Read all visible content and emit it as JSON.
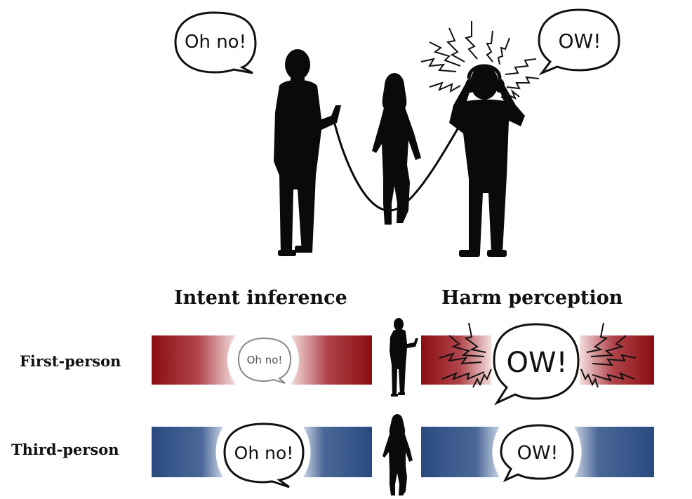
{
  "headers": {
    "intent": "Intent inference",
    "harm": "Harm perception"
  },
  "rows": {
    "first": "First-person",
    "third": "Third-person"
  },
  "bubbles": {
    "top_left": "Oh no!",
    "top_right": "OW!",
    "first_intent": "Oh no!",
    "first_harm": "OW!",
    "third_intent": "Oh no!",
    "third_harm": "OW!"
  },
  "colors": {
    "first_person_bar": "#8b0d10",
    "third_person_bar": "#2a4a7f",
    "silhouette": "#0a0a0a"
  }
}
